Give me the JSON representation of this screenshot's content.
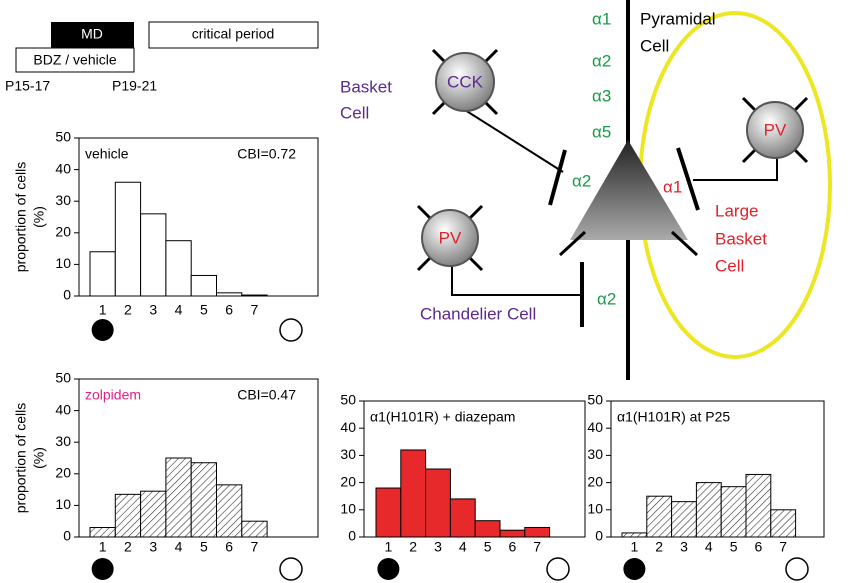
{
  "chart_data": [
    {
      "type": "bar",
      "title": "vehicle",
      "annotation": "CBI=0.72",
      "ylabel": [
        "proportion of cells",
        "(%)"
      ],
      "categories": [
        "1",
        "2",
        "3",
        "4",
        "5",
        "6",
        "7"
      ],
      "values": [
        14,
        36,
        26,
        17.5,
        6.5,
        1,
        0.3
      ],
      "color": "#ffffff",
      "hatched": false,
      "title_color": "#000000",
      "ylim": [
        0,
        50
      ],
      "yticks": [
        0,
        10,
        20,
        30,
        40,
        50
      ]
    },
    {
      "type": "bar",
      "title": "zolpidem",
      "annotation": "CBI=0.47",
      "ylabel": [
        "proportion of cells",
        "(%)"
      ],
      "categories": [
        "1",
        "2",
        "3",
        "4",
        "5",
        "6",
        "7"
      ],
      "values": [
        3,
        13.5,
        14.5,
        25,
        23.5,
        16.5,
        5
      ],
      "color": "#ffffff",
      "hatched": true,
      "title_color": "#e0208c",
      "ylim": [
        0,
        50
      ],
      "yticks": [
        0,
        10,
        20,
        30,
        40,
        50
      ]
    },
    {
      "type": "bar",
      "title": "α1(H101R) + diazepam",
      "categories": [
        "1",
        "2",
        "3",
        "4",
        "5",
        "6",
        "7"
      ],
      "values": [
        18,
        32,
        25,
        14,
        6,
        2.5,
        3.5
      ],
      "color": "#e8292b",
      "hatched": false,
      "title_color": "#000000",
      "ylim": [
        0,
        50
      ],
      "yticks": [
        0,
        10,
        20,
        30,
        40,
        50
      ]
    },
    {
      "type": "bar",
      "title": "α1(H101R) at P25",
      "categories": [
        "1",
        "2",
        "3",
        "4",
        "5",
        "6",
        "7"
      ],
      "values": [
        1.5,
        15,
        13,
        20,
        18.5,
        23,
        10
      ],
      "color": "#ffffff",
      "hatched": true,
      "title_color": "#000000",
      "ylim": [
        0,
        50
      ],
      "yticks": [
        0,
        10,
        20,
        30,
        40,
        50
      ]
    }
  ],
  "timeline": {
    "md": "MD",
    "critical": "critical period",
    "drug": "BDZ / vehicle",
    "p1": "P15-17",
    "p2": "P19-21"
  },
  "diagram": {
    "pyramidal": [
      "Pyramidal",
      "Cell"
    ],
    "alphas": [
      "α1",
      "α2",
      "α3",
      "α5"
    ],
    "cck": "CCK",
    "basket": [
      "Basket",
      "Cell"
    ],
    "syn_basket": "α2",
    "pv_left": "PV",
    "chandelier": "Chandelier Cell",
    "syn_chandelier": "α2",
    "pv_right": "PV",
    "large_basket": [
      "Large",
      "Basket",
      "Cell"
    ],
    "syn_large": "α1"
  }
}
